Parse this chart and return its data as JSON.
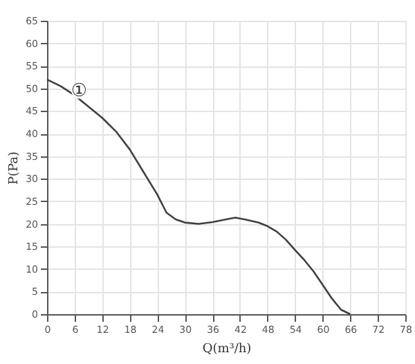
{
  "chart_data": {
    "type": "line",
    "xlabel": "Q(m³/h)",
    "ylabel": "P(Pa)",
    "x": [
      0,
      3,
      6,
      9,
      12,
      15,
      18,
      21,
      24,
      26,
      28,
      30,
      33,
      36,
      39,
      41,
      43,
      46,
      48,
      50,
      52,
      54,
      56,
      58,
      60,
      62,
      64,
      66
    ],
    "series": [
      {
        "color": "#404040",
        "values": [
          52,
          50.5,
          48.5,
          46,
          43.5,
          40.5,
          36.5,
          31.5,
          26.5,
          22.5,
          21,
          20.3,
          20,
          20.4,
          21,
          21.4,
          21,
          20.3,
          19.5,
          18.3,
          16.5,
          14.2,
          12,
          9.5,
          6.5,
          3.5,
          1,
          0
        ]
      }
    ],
    "annotations": [
      {
        "text": "①",
        "x": 7,
        "y": 49.5
      }
    ],
    "xlim": [
      0,
      78
    ],
    "xticks": [
      0,
      6,
      12,
      18,
      24,
      30,
      36,
      42,
      48,
      54,
      60,
      66,
      72,
      78
    ],
    "ylim": [
      0,
      65
    ],
    "yticks": [
      0,
      5,
      10,
      15,
      20,
      25,
      30,
      35,
      40,
      45,
      50,
      55,
      60,
      65
    ],
    "grid": true,
    "marker": "none",
    "line_style": "solid"
  }
}
